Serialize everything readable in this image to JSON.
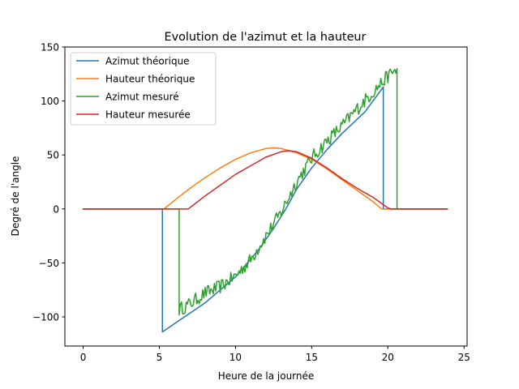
{
  "chart_data": {
    "type": "line",
    "title": "Evolution de l'azimut et la hauteur",
    "xlabel": "Heure de la journée",
    "ylabel": "Degré de l'angle",
    "xlim": [
      -1.2,
      25.2
    ],
    "ylim": [
      -127,
      150
    ],
    "xticks": [
      0,
      5,
      10,
      15,
      20,
      25
    ],
    "yticks": [
      -100,
      -50,
      0,
      50,
      100,
      150
    ],
    "xtick_labels": [
      "0",
      "5",
      "10",
      "15",
      "20",
      "25"
    ],
    "ytick_labels": [
      "−100",
      "−50",
      "0",
      "50",
      "100",
      "150"
    ],
    "grid": false,
    "legend_position": "top-left",
    "series": [
      {
        "name": "Azimut théorique",
        "color": "#1f77b4",
        "points": [
          [
            0,
            0
          ],
          [
            5.2,
            0
          ],
          [
            5.2,
            -114
          ],
          [
            8,
            -87
          ],
          [
            10,
            -63
          ],
          [
            11.5,
            -38
          ],
          [
            12.5,
            -18
          ],
          [
            13.3,
            0
          ],
          [
            14,
            18
          ],
          [
            15,
            38
          ],
          [
            16,
            55
          ],
          [
            17,
            70
          ],
          [
            18.5,
            90
          ],
          [
            19.7,
            113
          ],
          [
            19.7,
            0
          ],
          [
            23.9,
            0
          ]
        ]
      },
      {
        "name": "Hauteur théorique",
        "color": "#ff7f0e",
        "points": [
          [
            0,
            0
          ],
          [
            5.3,
            0
          ],
          [
            6,
            8
          ],
          [
            7,
            19
          ],
          [
            8,
            29
          ],
          [
            9,
            38
          ],
          [
            10,
            46
          ],
          [
            11,
            52
          ],
          [
            12,
            56
          ],
          [
            12.5,
            56.5
          ],
          [
            13,
            56
          ],
          [
            14,
            52
          ],
          [
            15,
            46
          ],
          [
            16,
            37
          ],
          [
            17,
            27
          ],
          [
            18,
            17
          ],
          [
            19,
            7
          ],
          [
            19.6,
            0
          ],
          [
            23.9,
            0
          ]
        ]
      },
      {
        "name": "Azimut mesuré",
        "color": "#2ca02c",
        "noise": 4,
        "points": [
          [
            0,
            0
          ],
          [
            6.3,
            0
          ],
          [
            6.3,
            -93
          ],
          [
            7,
            -88
          ],
          [
            8,
            -78
          ],
          [
            9,
            -72
          ],
          [
            10,
            -62
          ],
          [
            11,
            -47
          ],
          [
            12,
            -25
          ],
          [
            13,
            -3
          ],
          [
            14,
            25
          ],
          [
            15,
            47
          ],
          [
            16,
            63
          ],
          [
            17,
            77
          ],
          [
            18,
            93
          ],
          [
            19,
            108
          ],
          [
            20,
            123
          ],
          [
            20.6,
            130
          ],
          [
            20.6,
            0
          ],
          [
            23.9,
            0
          ]
        ]
      },
      {
        "name": "Hauteur mesurée",
        "color": "#d62728",
        "points": [
          [
            0,
            0
          ],
          [
            6.9,
            0
          ],
          [
            8,
            12
          ],
          [
            9,
            22
          ],
          [
            10,
            32
          ],
          [
            11,
            40
          ],
          [
            12,
            48
          ],
          [
            13,
            53
          ],
          [
            13.5,
            54
          ],
          [
            14,
            53
          ],
          [
            15,
            47
          ],
          [
            16,
            38
          ],
          [
            17,
            28
          ],
          [
            18,
            19
          ],
          [
            19,
            11
          ],
          [
            20,
            1
          ],
          [
            20.2,
            0
          ],
          [
            23.9,
            0
          ]
        ]
      }
    ]
  }
}
